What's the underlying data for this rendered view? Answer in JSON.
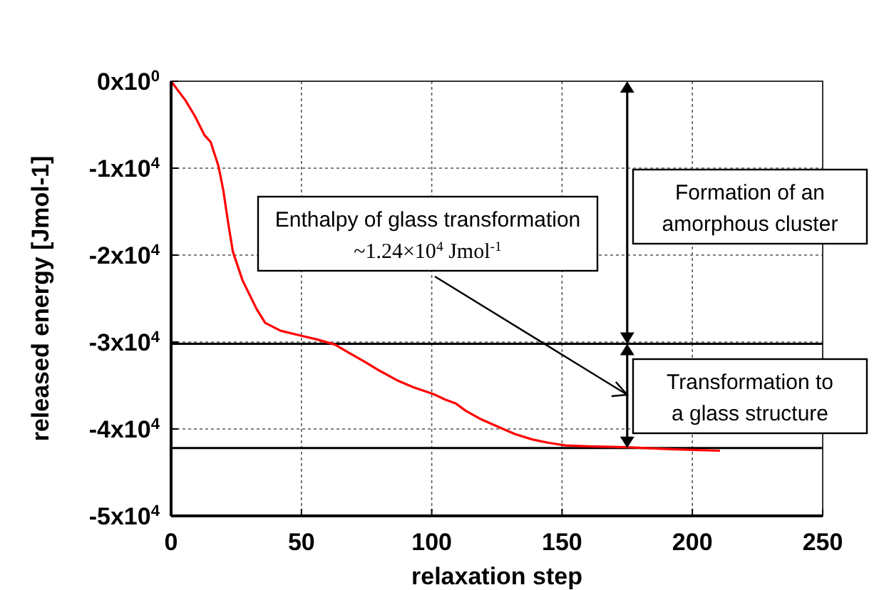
{
  "chart_data": {
    "type": "line",
    "xlabel": "relaxation step",
    "ylabel": "released energy [Jmol-1]",
    "x": [
      0,
      5.5,
      9.1,
      12.8,
      15.2,
      18.2,
      20,
      21.9,
      23.7,
      27.4,
      32.8,
      36.1,
      42,
      50.3,
      56,
      62.9,
      68,
      73.9,
      80,
      86.7,
      93,
      100.8,
      105,
      109.4,
      113,
      119,
      125.8,
      132,
      138.5,
      145,
      151.3,
      160,
      175,
      190,
      200,
      210.6
    ],
    "series": [
      {
        "color": "#ff0000",
        "values": [
          0,
          -2200.0,
          -4000.0,
          -6200.0,
          -7000.0,
          -9800.0,
          -12500.0,
          -16300.0,
          -19600.0,
          -22900.0,
          -26200.0,
          -27800.0,
          -28700.0,
          -29300.0,
          -29700.0,
          -30300.0,
          -31200.0,
          -32200.0,
          -33300.0,
          -34400.0,
          -35200.0,
          -36000.0,
          -36600.0,
          -37100.0,
          -37900.0,
          -38900.0,
          -39800.0,
          -40600.0,
          -41200.0,
          -41600.0,
          -41900.0,
          -42000.0,
          -42100.0,
          -42300.0,
          -42400.0,
          -42500.0
        ]
      }
    ],
    "xlim": [
      0,
      250
    ],
    "xticks": [
      0,
      50,
      100,
      150,
      200,
      250
    ],
    "ylim": [
      -50000,
      0
    ],
    "yticks": [
      {
        "value": 0,
        "label": "0x10$^{0}$"
      },
      {
        "value": -10000,
        "label": "-1x10$^{4}$"
      },
      {
        "value": -20000,
        "label": "-2x10$^{4}$"
      },
      {
        "value": -30000,
        "label": "-3x10$^{4}$"
      },
      {
        "value": -40000,
        "label": "-4x10$^{4}$"
      },
      {
        "value": -50000,
        "label": "-5x10$^{4}$"
      }
    ],
    "grid": true,
    "marker": "none",
    "line_style": "solid",
    "ref_lines": [
      {
        "axis": "y",
        "value": -30200,
        "color": "#000000"
      },
      {
        "axis": "y",
        "value": -42200,
        "color": "#000000"
      }
    ],
    "annotations": [
      "Enthalpy of glass transformation\n~1.24×10$^{4}$  Jmol$^{-1}$",
      "Formation of an\namorphous cluster",
      "Transformation to\na glass structure"
    ]
  }
}
